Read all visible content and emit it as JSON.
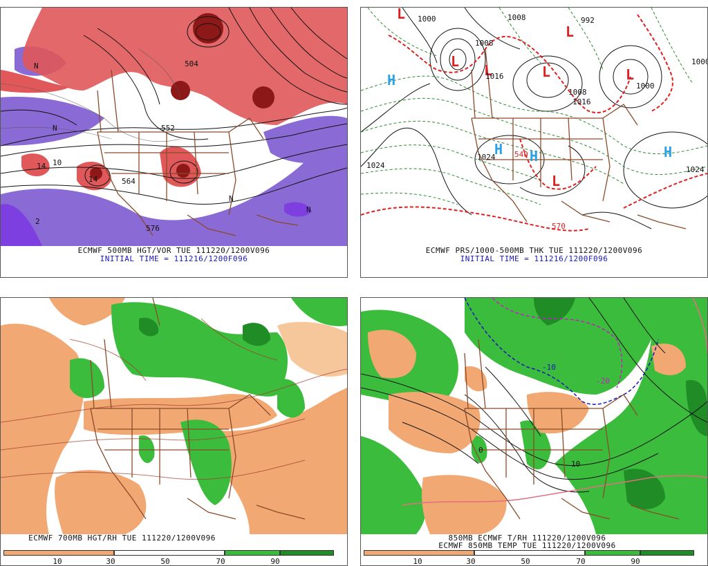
{
  "panels": {
    "p1": {
      "caption1": "ECMWF 500MB HGT/VOR TUE 111220/1200V096",
      "caption2": "INITIAL TIME = 111216/1200F096",
      "labels": [
        "552",
        "564",
        "576",
        "504",
        "10",
        "14",
        "14",
        "N",
        "N",
        "N",
        "N",
        "2"
      ]
    },
    "p2": {
      "caption1": "ECMWF PRS/1000-500MB THK TUE 111220/1200V096",
      "caption2": "INITIAL TIME = 111216/1200F096",
      "highs": [
        "H",
        "H",
        "H",
        "H"
      ],
      "lows": [
        "L",
        "L",
        "L",
        "L",
        "L",
        "L",
        "L"
      ],
      "labels": [
        "1000",
        "1008",
        "1016",
        "1024",
        "1024",
        "1024",
        "1000",
        "1008",
        "1016",
        "992",
        "1000",
        "1008",
        "540",
        "570"
      ]
    },
    "p3": {
      "caption1": "ECMWF 700MB HGT/RH TUE 111220/1200V096"
    },
    "p4": {
      "caption1": "850MB ECMWF T/RH 111220/1200V096",
      "caption2": "ECMWF 850MB TEMP TUE 111220/1200V096",
      "labels": [
        "-10",
        "-20",
        "10",
        "0"
      ]
    }
  },
  "colorbar_left": {
    "ticks": [
      "10",
      "30",
      "50",
      "70",
      "90"
    ]
  },
  "colorbar_right": {
    "ticks": [
      "10",
      "30",
      "50",
      "70",
      "90"
    ]
  },
  "colors": {
    "dry": "#f2a872",
    "dry_light": "#f7c79c",
    "moist": "#3cbc3c",
    "moist_dark": "#1f8c26",
    "vor_pos": "#e0585a",
    "vor_pos_dark": "#8c1818",
    "vor_neg": "#8a6ad4",
    "vor_neg_dark": "#7e3fe0",
    "border": "#8a4a2a",
    "low": "#e02020",
    "high": "#2aa0e6"
  }
}
